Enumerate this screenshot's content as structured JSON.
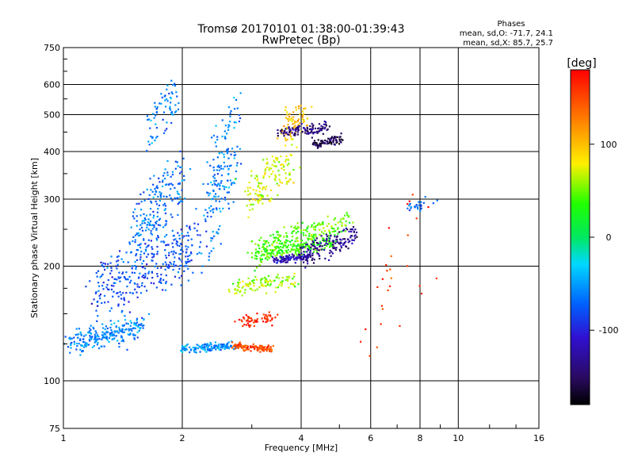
{
  "chart_data": {
    "type": "scatter",
    "title": "Tromsø 20170101 01:38:00-01:39:43",
    "subtitle": "RwPretec (Bp)",
    "xlabel": "Frequency [MHz]",
    "ylabel": "Stationary phase Virtual Height [km]",
    "x_scale": "log",
    "y_scale": "log",
    "xlim": [
      1,
      16
    ],
    "ylim": [
      75,
      750
    ],
    "x_ticks": [
      "1",
      "2",
      "4",
      "6",
      "8",
      "10",
      "16"
    ],
    "y_ticks": [
      "75",
      "100",
      "200",
      "300",
      "400",
      "500",
      "600",
      "750"
    ],
    "grid": true,
    "stats": {
      "heading": "Phases",
      "line_o": "mean, sd,O: -71.7, 24.1",
      "line_x": "mean, sd,X: 85.7, 25.7"
    },
    "colorbar": {
      "label": "[deg]",
      "ticks": [
        "100",
        "0",
        "-100"
      ],
      "tick_values": [
        100,
        0,
        -100
      ],
      "range": [
        -180,
        180
      ]
    },
    "series": [
      {
        "x": [
          1.05,
          1.6
        ],
        "y": [
          120,
          145
        ],
        "phase": -60,
        "n": 240,
        "spread": 0.05
      },
      {
        "x": [
          1.2,
          2.2
        ],
        "y": [
          150,
          260
        ],
        "phase": -80,
        "n": 320,
        "spread": 0.06
      },
      {
        "x": [
          1.5,
          2.0
        ],
        "y": [
          200,
          400
        ],
        "phase": -65,
        "n": 200,
        "spread": 0.05
      },
      {
        "x": [
          1.65,
          1.95
        ],
        "y": [
          400,
          640
        ],
        "phase": -60,
        "n": 70,
        "spread": 0.03
      },
      {
        "x": [
          2.0,
          2.7
        ],
        "y": [
          120,
          125
        ],
        "phase": -55,
        "n": 130,
        "spread": 0.02
      },
      {
        "x": [
          2.3,
          2.75
        ],
        "y": [
          200,
          580
        ],
        "phase": -60,
        "n": 180,
        "spread": 0.05
      },
      {
        "x": [
          2.7,
          3.4
        ],
        "y": [
          125,
          120
        ],
        "phase": 150,
        "n": 110,
        "spread": 0.015
      },
      {
        "x": [
          2.8,
          3.4
        ],
        "y": [
          140,
          148
        ],
        "phase": 165,
        "n": 60,
        "spread": 0.03
      },
      {
        "x": [
          2.7,
          3.9
        ],
        "y": [
          170,
          190
        ],
        "phase": 60,
        "n": 110,
        "spread": 0.03
      },
      {
        "x": [
          3.0,
          4.0
        ],
        "y": [
          200,
          260
        ],
        "phase": 45,
        "n": 140,
        "spread": 0.035
      },
      {
        "x": [
          2.9,
          3.8
        ],
        "y": [
          270,
          420
        ],
        "phase": 70,
        "n": 140,
        "spread": 0.05
      },
      {
        "x": [
          3.6,
          4.1
        ],
        "y": [
          420,
          540
        ],
        "phase": 100,
        "n": 70,
        "spread": 0.04
      },
      {
        "x": [
          3.2,
          4.8
        ],
        "y": [
          210,
          240
        ],
        "phase": 40,
        "n": 160,
        "spread": 0.025
      },
      {
        "x": [
          3.9,
          5.4
        ],
        "y": [
          230,
          275
        ],
        "phase": 50,
        "n": 90,
        "spread": 0.03
      },
      {
        "x": [
          3.4,
          4.2
        ],
        "y": [
          205,
          215
        ],
        "phase": -115,
        "n": 110,
        "spread": 0.012
      },
      {
        "x": [
          4.0,
          5.5
        ],
        "y": [
          200,
          260
        ],
        "phase": -135,
        "n": 150,
        "spread": 0.02
      },
      {
        "x": [
          3.5,
          4.7
        ],
        "y": [
          440,
          470
        ],
        "phase": -140,
        "n": 110,
        "spread": 0.025
      },
      {
        "x": [
          4.3,
          5.1
        ],
        "y": [
          410,
          440
        ],
        "phase": -155,
        "n": 80,
        "spread": 0.015
      },
      {
        "x": [
          6.3,
          7.6
        ],
        "y": [
          95,
          365
        ],
        "phase": 160,
        "n": 28,
        "spread": 0.12
      },
      {
        "x": [
          7.5,
          8.9
        ],
        "y": [
          280,
          300
        ],
        "phase": -70,
        "n": 25,
        "spread": 0.025
      }
    ]
  }
}
